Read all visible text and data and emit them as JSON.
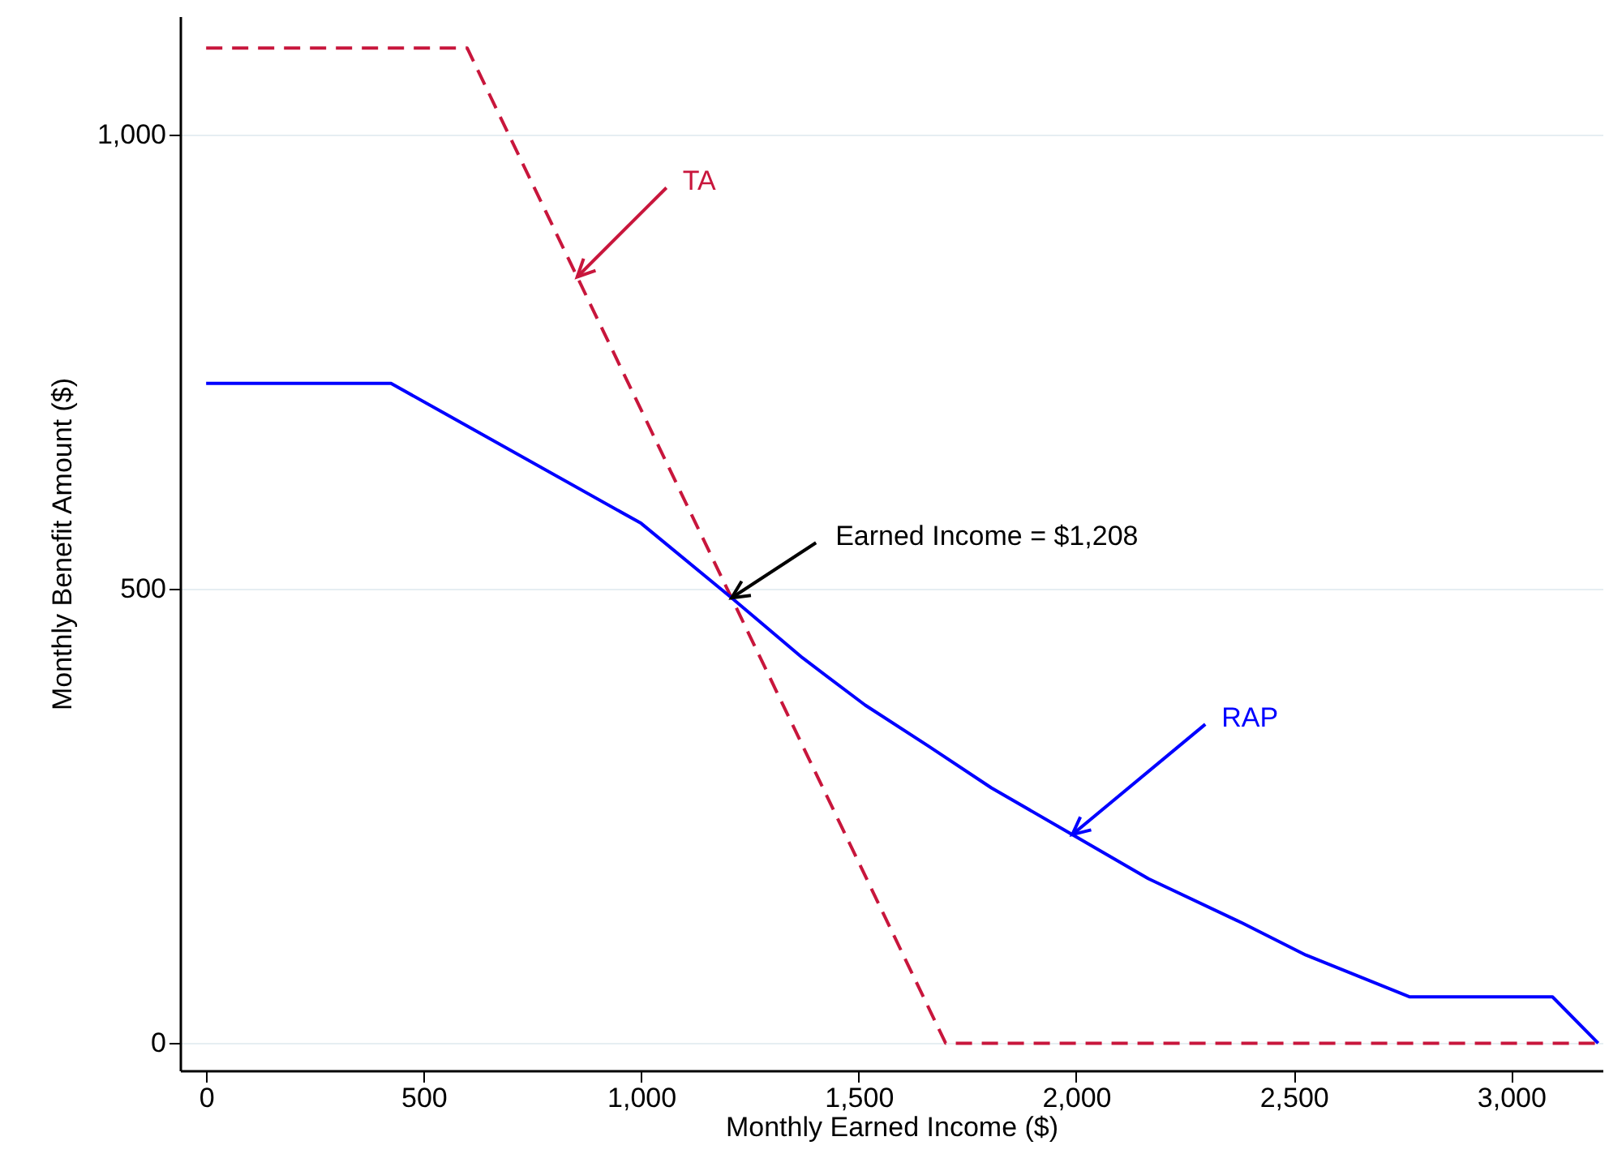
{
  "chart_data": {
    "type": "line",
    "xlabel": "Monthly Earned Income ($)",
    "ylabel": "Monthly Benefit Amount ($)",
    "xlim": [
      -60,
      3210
    ],
    "ylim": [
      -30,
      1130
    ],
    "xticks": [
      0,
      500,
      {
        "value": 1000,
        "label": "1,000"
      },
      {
        "value": 1500,
        "label": "1,500"
      },
      {
        "value": 2000,
        "label": "2,000"
      },
      {
        "value": 2500,
        "label": "2,500"
      },
      {
        "value": 3000,
        "label": "3,000"
      }
    ],
    "yticks": [
      0,
      500,
      {
        "value": 1000,
        "label": "1,000"
      }
    ],
    "grid": "y",
    "series": [
      {
        "name": "TA",
        "color": "#c8163c",
        "line_style": "dashed",
        "x": [
          0,
          600,
          1700,
          3200
        ],
        "values": [
          1095,
          1095,
          0,
          0
        ]
      },
      {
        "name": "RAP",
        "color": "#0000ff",
        "line_style": "solid",
        "x": [
          0,
          425,
          1000,
          1208,
          1371,
          1515,
          1660,
          1805,
          1993,
          2166,
          2383,
          2528,
          2766,
          3095,
          3200
        ],
        "values": [
          726,
          726,
          572,
          490,
          424,
          372,
          327,
          281,
          229,
          181,
          132,
          97,
          51,
          51,
          0
        ]
      }
    ],
    "annotations": [
      {
        "text": "Earned Income = $1,208",
        "x": 1208,
        "y": 490
      }
    ]
  }
}
